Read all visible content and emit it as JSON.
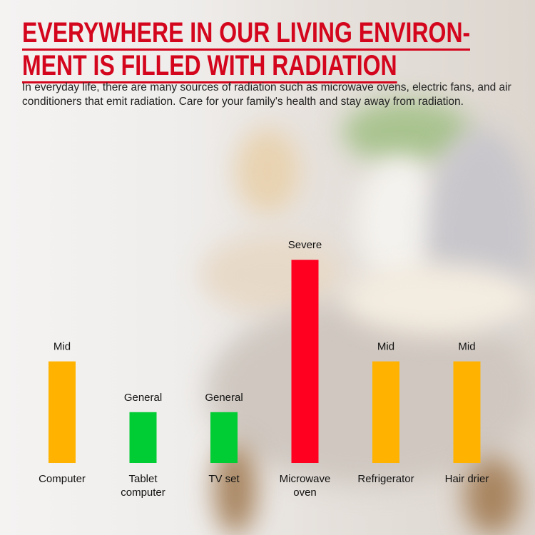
{
  "title_lines": [
    "EVERYWHERE IN OUR LIVING ENVIRON-",
    "MENT IS FILLED WITH RADIATION"
  ],
  "description": "In everyday life, there are many sources of radiation such as microwave ovens, electric fans, and air conditioners that emit radiation. Care for your family's health and stay away from radiation.",
  "colors": {
    "title": "#d4061d",
    "Mid": "#ffb300",
    "General": "#00cc33",
    "Severe": "#ff0020"
  },
  "chart_data": {
    "type": "bar",
    "categories": [
      [
        "Computer"
      ],
      [
        "Tablet",
        "computer"
      ],
      [
        "TV set"
      ],
      [
        "Microwave",
        "oven"
      ],
      [
        "Refrigerator"
      ],
      [
        "Hair drier"
      ]
    ],
    "values": [
      2,
      1,
      1,
      4,
      2,
      2
    ],
    "value_labels": [
      "Mid",
      "General",
      "General",
      "Severe",
      "Mid",
      "Mid"
    ],
    "grid": false
  }
}
